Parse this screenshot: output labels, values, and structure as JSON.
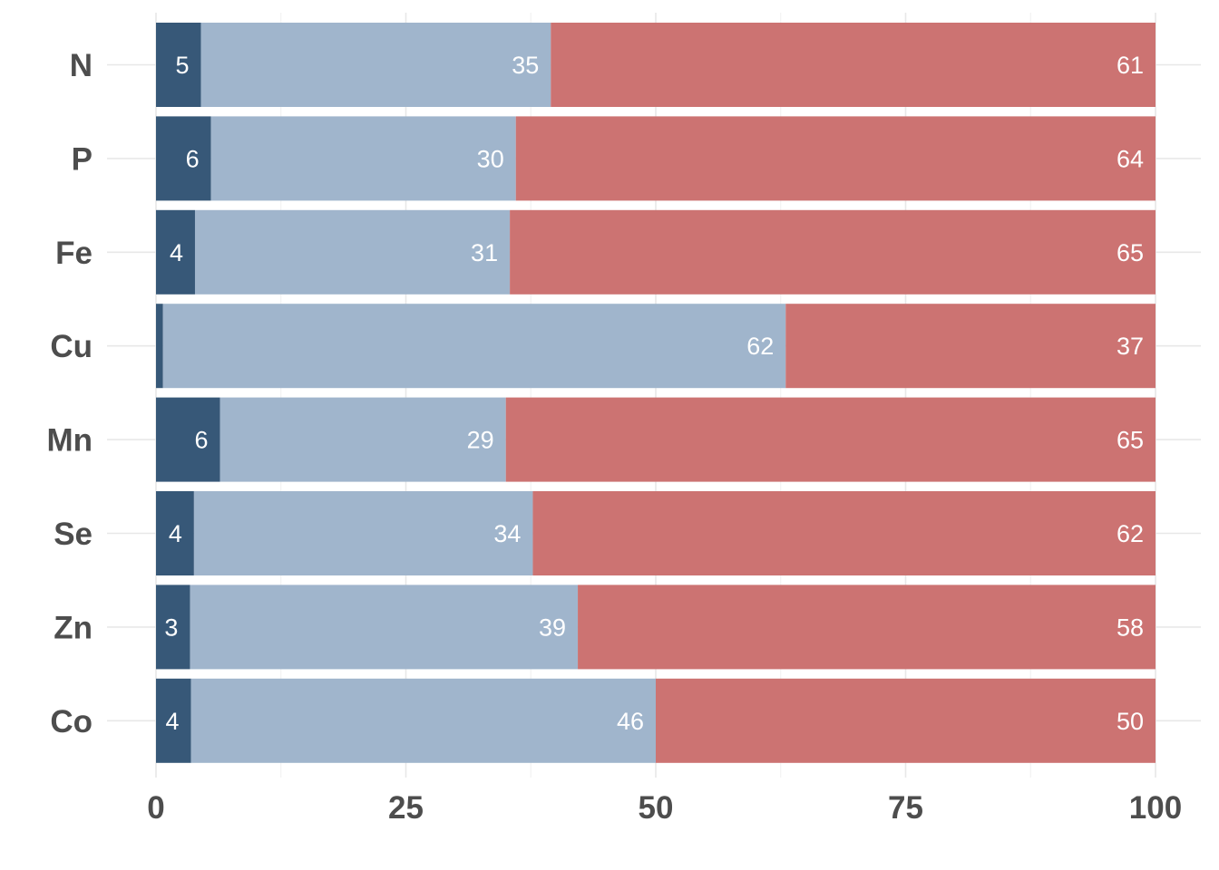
{
  "chart_data": {
    "type": "bar",
    "orientation": "horizontal",
    "stacked": true,
    "title": "",
    "xlabel": "",
    "ylabel": "",
    "xlim": [
      0,
      100
    ],
    "x_ticks": [
      "0",
      "25",
      "50",
      "75",
      "100"
    ],
    "categories": [
      "N",
      "P",
      "Fe",
      "Cu",
      "Mn",
      "Se",
      "Zn",
      "Co"
    ],
    "grid": true,
    "legend": "none",
    "series": [
      {
        "color": "#375878",
        "values": [
          4.5,
          5.5,
          3.9,
          0.7,
          6.4,
          3.8,
          3.4,
          3.5
        ],
        "labels": [
          "5",
          "6",
          "4",
          "",
          "6",
          "4",
          "3",
          "4"
        ]
      },
      {
        "color": "#a0b5cc",
        "values": [
          35,
          30.5,
          31.5,
          62.3,
          28.6,
          33.9,
          38.8,
          46.5
        ],
        "labels": [
          "35",
          "30",
          "31",
          "62",
          "29",
          "34",
          "39",
          "46"
        ]
      },
      {
        "color": "#cc7372",
        "values": [
          60.5,
          64,
          64.6,
          37,
          65,
          62.3,
          57.8,
          50
        ],
        "labels": [
          "61",
          "64",
          "65",
          "37",
          "65",
          "62",
          "58",
          "50"
        ]
      }
    ]
  }
}
